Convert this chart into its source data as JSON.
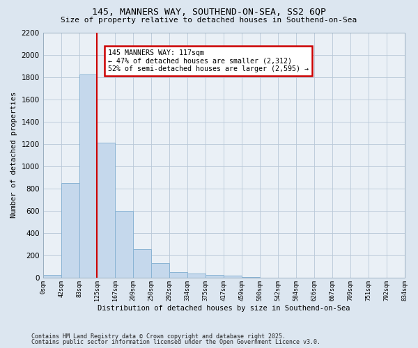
{
  "title1": "145, MANNERS WAY, SOUTHEND-ON-SEA, SS2 6QP",
  "title2": "Size of property relative to detached houses in Southend-on-Sea",
  "xlabel": "Distribution of detached houses by size in Southend-on-Sea",
  "ylabel": "Number of detached properties",
  "bar_values": [
    25,
    850,
    1820,
    1210,
    600,
    255,
    130,
    48,
    38,
    28,
    18,
    5,
    0,
    0,
    0,
    0,
    0,
    0,
    0,
    0
  ],
  "bin_labels": [
    "0sqm",
    "42sqm",
    "83sqm",
    "125sqm",
    "167sqm",
    "209sqm",
    "250sqm",
    "292sqm",
    "334sqm",
    "375sqm",
    "417sqm",
    "459sqm",
    "500sqm",
    "542sqm",
    "584sqm",
    "626sqm",
    "667sqm",
    "709sqm",
    "751sqm",
    "792sqm",
    "834sqm"
  ],
  "bar_color": "#c5d8ec",
  "bar_edge_color": "#8ab4d4",
  "vline_x": 3,
  "vline_color": "#cc0000",
  "annotation_text": "145 MANNERS WAY: 117sqm\n← 47% of detached houses are smaller (2,312)\n52% of semi-detached houses are larger (2,595) →",
  "annotation_box_color": "#ffffff",
  "annotation_box_edge": "#cc0000",
  "ylim_max": 2200,
  "yticks": [
    0,
    200,
    400,
    600,
    800,
    1000,
    1200,
    1400,
    1600,
    1800,
    2000,
    2200
  ],
  "footer1": "Contains HM Land Registry data © Crown copyright and database right 2025.",
  "footer2": "Contains public sector information licensed under the Open Government Licence v3.0.",
  "bg_color": "#dce6f0",
  "plot_bg_color": "#eaf0f6",
  "grid_color": "#b8c8d8"
}
